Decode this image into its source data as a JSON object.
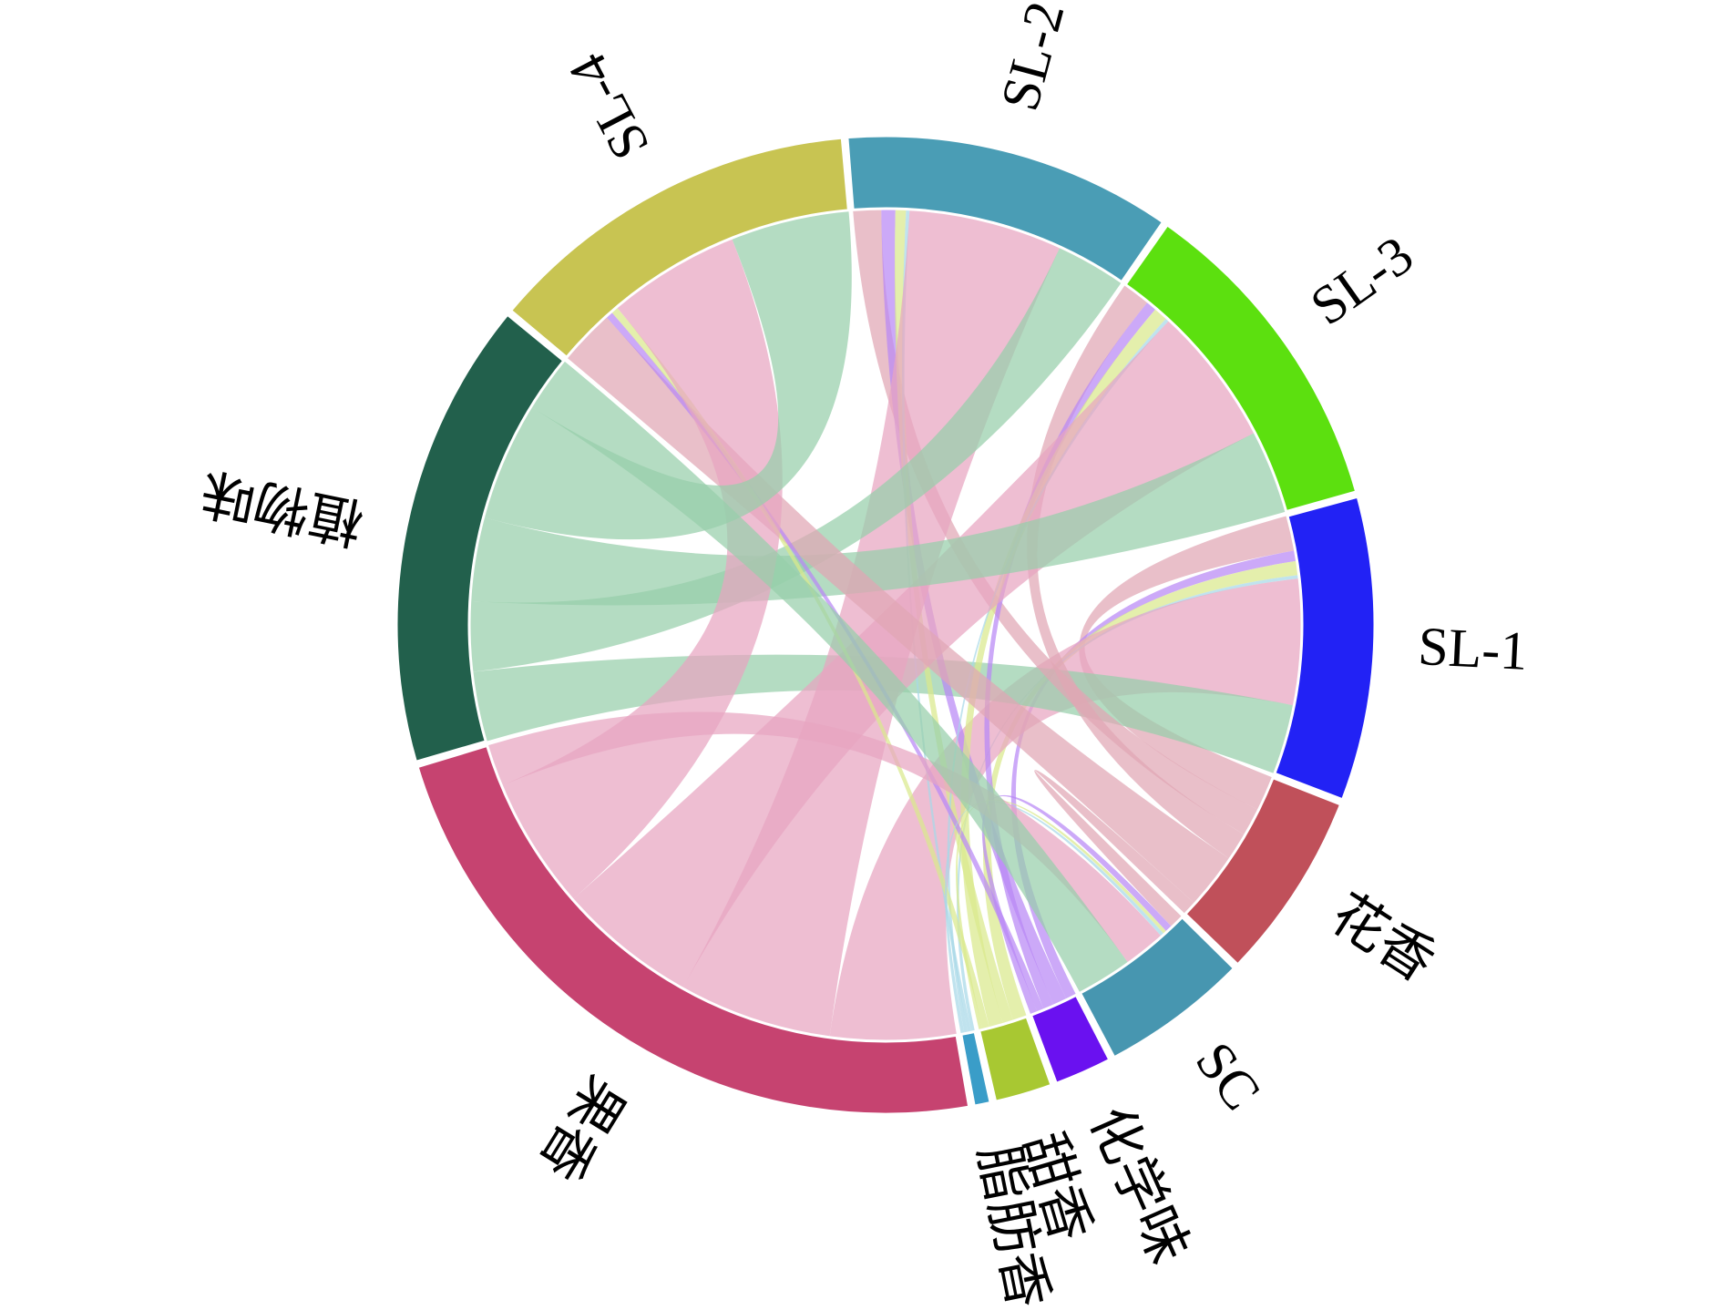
{
  "chart_data": {
    "type": "chord",
    "samples": [
      {
        "name": "SL-1",
        "color": "#2222f5"
      },
      {
        "name": "SL-2",
        "color": "#4a9db5"
      },
      {
        "name": "SL-3",
        "color": "#5ce00f"
      },
      {
        "name": "SL-4",
        "color": "#c8c452"
      },
      {
        "name": "SC",
        "color": "#4796b0"
      }
    ],
    "aromas": [
      {
        "name": "花香",
        "color": "#c0505a",
        "link_color": "#e0a6b4"
      },
      {
        "name": "化学味",
        "color": "#6a11f0",
        "link_color": "#b888f5"
      },
      {
        "name": "甜香",
        "color": "#a8c832",
        "link_color": "#d9e98c"
      },
      {
        "name": "脂肪香",
        "color": "#3a9dc8",
        "link_color": "#a8d8e8"
      },
      {
        "name": "果香",
        "color": "#c64370",
        "link_color": "#e7a5c0"
      },
      {
        "name": "植物味",
        "color": "#22604c",
        "link_color": "#97cfaa"
      }
    ],
    "matrix": [
      [
        5,
        1.5,
        2,
        0.5,
        18,
        10
      ],
      [
        4,
        2,
        1.5,
        0.5,
        22,
        10
      ],
      [
        4,
        1.5,
        2,
        0.5,
        20,
        12
      ],
      [
        8,
        1,
        1,
        0,
        19,
        17
      ],
      [
        2,
        1,
        0.5,
        0.5,
        6,
        8
      ]
    ]
  }
}
